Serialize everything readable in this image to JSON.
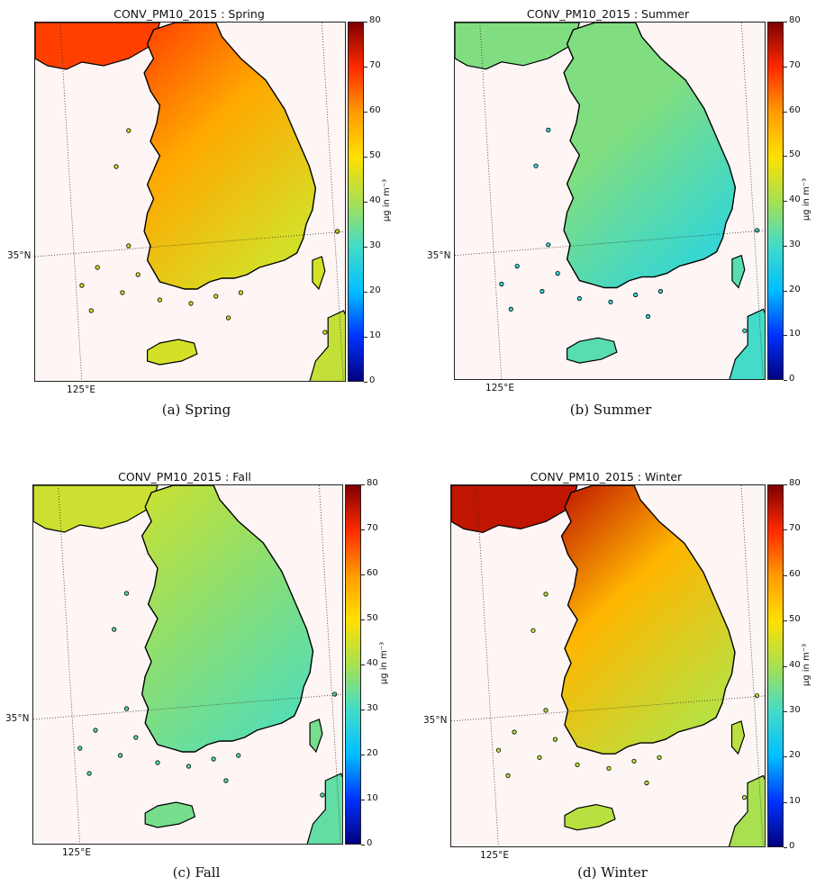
{
  "colorbar": {
    "min": 0,
    "max": 80,
    "ticks": [
      "0",
      "10",
      "20",
      "30",
      "40",
      "50",
      "60",
      "70",
      "80"
    ],
    "unit_label": "μg in m⁻³",
    "colormap": [
      "#00007f",
      "#0033ff",
      "#00bfff",
      "#44dcc8",
      "#a8e050",
      "#ffe000",
      "#ff9a00",
      "#ff2a00",
      "#800000"
    ]
  },
  "latitude_label": "35°N",
  "longitude_label": "125°E",
  "panels": [
    {
      "title": "CONV_PM10_2015 : Spring",
      "caption": "(a) Spring",
      "season": "Spring",
      "dominant_value": 58,
      "north_value": 68,
      "coast_value": 45,
      "island_value": 45
    },
    {
      "title": "CONV_PM10_2015 : Summer",
      "caption": "(b) Summer",
      "season": "Summer",
      "dominant_value": 36,
      "north_value": 36,
      "coast_value": 28,
      "island_value": 32
    },
    {
      "title": "CONV_PM10_2015 : Fall",
      "caption": "(c) Fall",
      "season": "Fall",
      "dominant_value": 38,
      "north_value": 44,
      "coast_value": 32,
      "island_value": 35
    },
    {
      "title": "CONV_PM10_2015 : Winter",
      "caption": "(d) Winter",
      "season": "Winter",
      "dominant_value": 56,
      "north_value": 75,
      "coast_value": 42,
      "island_value": 42
    }
  ]
}
